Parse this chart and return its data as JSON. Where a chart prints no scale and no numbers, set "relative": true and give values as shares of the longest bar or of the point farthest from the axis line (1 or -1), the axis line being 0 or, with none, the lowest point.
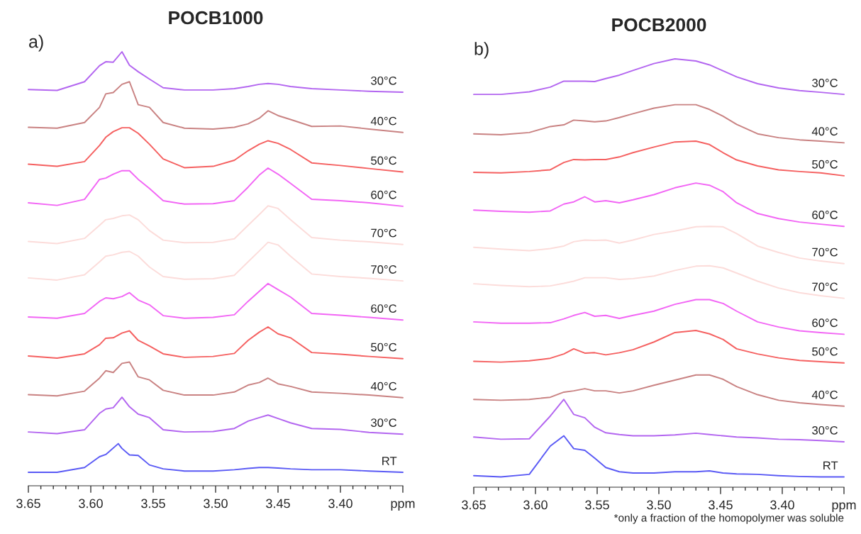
{
  "chart_data": [
    {
      "type": "line",
      "title": "POCB1000",
      "relative": true,
      "annotations": [
        "a)"
      ],
      "xlim": [
        3.65,
        3.35
      ],
      "xticks": [
        3.65,
        {
          "value": 3.6,
          "label": "3.60"
        },
        3.55,
        {
          "value": 3.5,
          "label": "3.50"
        },
        3.45,
        {
          "value": 3.4,
          "label": "3.40"
        },
        {
          "value": 3.35,
          "label": "ppm"
        },
        {
          "value": 3.64,
          "label": null
        },
        {
          "value": 3.63,
          "label": null
        },
        {
          "value": 3.62,
          "label": null
        },
        {
          "value": 3.61,
          "label": null
        },
        {
          "value": 3.59,
          "label": null
        },
        {
          "value": 3.58,
          "label": null
        },
        {
          "value": 3.57,
          "label": null
        },
        {
          "value": 3.56,
          "label": null
        },
        {
          "value": 3.54,
          "label": null
        },
        {
          "value": 3.53,
          "label": null
        },
        {
          "value": 3.52,
          "label": null
        },
        {
          "value": 3.51,
          "label": null
        },
        {
          "value": 3.49,
          "label": null
        },
        {
          "value": 3.48,
          "label": null
        },
        {
          "value": 3.47,
          "label": null
        },
        {
          "value": 3.46,
          "label": null
        },
        {
          "value": 3.44,
          "label": null
        },
        {
          "value": 3.43,
          "label": null
        },
        {
          "value": 3.42,
          "label": null
        },
        {
          "value": 3.41,
          "label": null
        },
        {
          "value": 3.39,
          "label": null
        },
        {
          "value": 3.38,
          "label": null
        },
        {
          "value": 3.37,
          "label": null
        },
        {
          "value": 3.36,
          "label": null
        }
      ],
      "x": [
        3.65,
        3.627,
        3.605,
        3.593,
        3.588,
        3.582,
        3.575,
        3.569,
        3.562,
        3.553,
        3.542,
        3.525,
        3.502,
        3.485,
        3.474,
        3.465,
        3.458,
        3.45,
        3.44,
        3.423,
        3.4,
        3.377,
        3.35
      ],
      "series": [
        {
          "name": "30°C",
          "color": "#b366f0",
          "values": [
            0.913,
            0.911,
            0.931,
            0.968,
            0.977,
            0.976,
            1.0,
            0.969,
            0.954,
            0.937,
            0.917,
            0.912,
            0.912,
            0.915,
            0.92,
            0.925,
            0.927,
            0.925,
            0.92,
            0.915,
            0.912,
            0.909,
            0.907
          ]
        },
        {
          "name": "40°C",
          "color": "#c98282",
          "values": [
            0.826,
            0.824,
            0.837,
            0.872,
            0.903,
            0.906,
            0.925,
            0.931,
            0.878,
            0.872,
            0.837,
            0.824,
            0.822,
            0.826,
            0.834,
            0.847,
            0.864,
            0.853,
            0.844,
            0.828,
            0.829,
            0.822,
            0.814
          ]
        },
        {
          "name": "50°C",
          "color": "#f56060",
          "values": [
            0.741,
            0.736,
            0.747,
            0.784,
            0.803,
            0.816,
            0.825,
            0.825,
            0.812,
            0.787,
            0.753,
            0.733,
            0.736,
            0.75,
            0.772,
            0.787,
            0.795,
            0.789,
            0.775,
            0.744,
            0.738,
            0.731,
            0.723
          ]
        },
        {
          "name": "60°C",
          "color": "#f266f5",
          "values": [
            0.652,
            0.646,
            0.66,
            0.706,
            0.709,
            0.718,
            0.726,
            0.726,
            0.706,
            0.685,
            0.657,
            0.649,
            0.65,
            0.657,
            0.688,
            0.716,
            0.732,
            0.718,
            0.697,
            0.66,
            0.657,
            0.652,
            0.644
          ]
        },
        {
          "name": "70°C",
          "color": "#fcdcda",
          "values": [
            0.563,
            0.558,
            0.57,
            0.6,
            0.613,
            0.616,
            0.622,
            0.624,
            0.613,
            0.588,
            0.566,
            0.56,
            0.561,
            0.569,
            0.6,
            0.625,
            0.645,
            0.639,
            0.613,
            0.572,
            0.566,
            0.562,
            0.556
          ]
        },
        {
          "name": "70°C",
          "color": "#fcdcda",
          "values": [
            0.479,
            0.474,
            0.486,
            0.516,
            0.529,
            0.532,
            0.538,
            0.54,
            0.529,
            0.504,
            0.482,
            0.476,
            0.477,
            0.485,
            0.516,
            0.541,
            0.561,
            0.555,
            0.529,
            0.488,
            0.482,
            0.478,
            0.472
          ]
        },
        {
          "name": "60°C",
          "color": "#f266f5",
          "values": [
            0.389,
            0.386,
            0.397,
            0.425,
            0.433,
            0.431,
            0.436,
            0.445,
            0.428,
            0.417,
            0.392,
            0.386,
            0.388,
            0.394,
            0.425,
            0.448,
            0.466,
            0.452,
            0.435,
            0.397,
            0.393,
            0.388,
            0.382
          ]
        },
        {
          "name": "50°C",
          "color": "#f56060",
          "values": [
            0.299,
            0.294,
            0.304,
            0.325,
            0.34,
            0.341,
            0.352,
            0.357,
            0.335,
            0.322,
            0.304,
            0.296,
            0.298,
            0.305,
            0.335,
            0.354,
            0.366,
            0.35,
            0.341,
            0.307,
            0.303,
            0.298,
            0.293
          ]
        },
        {
          "name": "40°C",
          "color": "#c98282",
          "values": [
            0.21,
            0.207,
            0.218,
            0.248,
            0.265,
            0.261,
            0.282,
            0.285,
            0.251,
            0.244,
            0.22,
            0.209,
            0.209,
            0.216,
            0.232,
            0.238,
            0.248,
            0.235,
            0.229,
            0.216,
            0.213,
            0.209,
            0.203
          ]
        },
        {
          "name": "30°C",
          "color": "#b366f0",
          "values": [
            0.124,
            0.12,
            0.129,
            0.167,
            0.177,
            0.18,
            0.204,
            0.182,
            0.165,
            0.157,
            0.129,
            0.124,
            0.125,
            0.132,
            0.149,
            0.157,
            0.163,
            0.155,
            0.145,
            0.132,
            0.13,
            0.123,
            0.119
          ]
        },
        {
          "name": "RT",
          "color": "#5a5af5",
          "x": [
            3.65,
            3.627,
            3.605,
            3.593,
            3.588,
            3.578,
            3.575,
            3.569,
            3.562,
            3.553,
            3.542,
            3.525,
            3.502,
            3.485,
            3.474,
            3.465,
            3.458,
            3.45,
            3.44,
            3.423,
            3.4,
            3.377,
            3.35
          ],
          "values": [
            0.031,
            0.031,
            0.042,
            0.067,
            0.072,
            0.097,
            0.086,
            0.071,
            0.07,
            0.048,
            0.039,
            0.034,
            0.034,
            0.037,
            0.04,
            0.042,
            0.042,
            0.041,
            0.039,
            0.037,
            0.037,
            0.034,
            0.031
          ]
        }
      ]
    },
    {
      "type": "line",
      "title": "POCB2000",
      "relative": true,
      "annotations": [
        "b)",
        "*only a fraction of the homopolymer was soluble"
      ],
      "xlim": [
        3.65,
        3.35
      ],
      "xticks": [
        3.65,
        {
          "value": 3.6,
          "label": "3.60"
        },
        3.55,
        {
          "value": 3.5,
          "label": "3.50"
        },
        3.45,
        {
          "value": 3.4,
          "label": "3.40"
        },
        {
          "value": 3.35,
          "label": "ppm"
        },
        {
          "value": 3.64,
          "label": null
        },
        {
          "value": 3.63,
          "label": null
        },
        {
          "value": 3.62,
          "label": null
        },
        {
          "value": 3.61,
          "label": null
        },
        {
          "value": 3.59,
          "label": null
        },
        {
          "value": 3.58,
          "label": null
        },
        {
          "value": 3.57,
          "label": null
        },
        {
          "value": 3.56,
          "label": null
        },
        {
          "value": 3.54,
          "label": null
        },
        {
          "value": 3.53,
          "label": null
        },
        {
          "value": 3.52,
          "label": null
        },
        {
          "value": 3.51,
          "label": null
        },
        {
          "value": 3.49,
          "label": null
        },
        {
          "value": 3.48,
          "label": null
        },
        {
          "value": 3.47,
          "label": null
        },
        {
          "value": 3.46,
          "label": null
        },
        {
          "value": 3.44,
          "label": null
        },
        {
          "value": 3.43,
          "label": null
        },
        {
          "value": 3.42,
          "label": null
        },
        {
          "value": 3.41,
          "label": null
        },
        {
          "value": 3.39,
          "label": null
        },
        {
          "value": 3.38,
          "label": null
        },
        {
          "value": 3.37,
          "label": null
        },
        {
          "value": 3.36,
          "label": null
        }
      ],
      "x": [
        3.65,
        3.628,
        3.605,
        3.588,
        3.577,
        3.569,
        3.56,
        3.552,
        3.543,
        3.532,
        3.521,
        3.504,
        3.487,
        3.47,
        3.459,
        3.448,
        3.437,
        3.42,
        3.403,
        3.386,
        3.369,
        3.35
      ],
      "series": [
        {
          "name": "30°C",
          "color": "#b366f0",
          "values": [
            0.917,
            0.917,
            0.923,
            0.934,
            0.948,
            0.948,
            0.948,
            0.947,
            0.954,
            0.962,
            0.973,
            0.989,
            1.0,
            0.995,
            0.986,
            0.972,
            0.958,
            0.942,
            0.932,
            0.926,
            0.922,
            0.917
          ]
        },
        {
          "name": "40°C",
          "color": "#c98282",
          "values": [
            0.825,
            0.823,
            0.828,
            0.842,
            0.846,
            0.857,
            0.855,
            0.853,
            0.855,
            0.863,
            0.872,
            0.885,
            0.893,
            0.893,
            0.882,
            0.866,
            0.847,
            0.825,
            0.816,
            0.811,
            0.808,
            0.804
          ]
        },
        {
          "name": "50°C",
          "color": "#f56060",
          "values": [
            0.735,
            0.734,
            0.737,
            0.741,
            0.758,
            0.765,
            0.764,
            0.765,
            0.765,
            0.771,
            0.781,
            0.794,
            0.806,
            0.808,
            0.8,
            0.781,
            0.764,
            0.75,
            0.741,
            0.737,
            0.734,
            0.727
          ]
        },
        {
          "name": "60°C",
          "color": "#f266f5",
          "values": [
            0.647,
            0.644,
            0.642,
            0.645,
            0.661,
            0.666,
            0.678,
            0.666,
            0.669,
            0.664,
            0.671,
            0.683,
            0.699,
            0.71,
            0.705,
            0.69,
            0.664,
            0.639,
            0.627,
            0.619,
            0.614,
            0.609
          ]
        },
        {
          "name": "70°C",
          "color": "#fcdcda",
          "values": [
            0.56,
            0.556,
            0.552,
            0.557,
            0.563,
            0.573,
            0.577,
            0.576,
            0.577,
            0.57,
            0.577,
            0.59,
            0.598,
            0.608,
            0.609,
            0.608,
            0.592,
            0.563,
            0.548,
            0.535,
            0.528,
            0.522
          ]
        },
        {
          "name": "70°C",
          "color": "#fcdcda",
          "values": [
            0.475,
            0.471,
            0.468,
            0.47,
            0.476,
            0.481,
            0.489,
            0.489,
            0.489,
            0.485,
            0.487,
            0.493,
            0.506,
            0.516,
            0.517,
            0.512,
            0.5,
            0.481,
            0.465,
            0.454,
            0.447,
            0.441
          ]
        },
        {
          "name": "60°C",
          "color": "#f266f5",
          "values": [
            0.386,
            0.383,
            0.383,
            0.384,
            0.393,
            0.401,
            0.408,
            0.399,
            0.401,
            0.394,
            0.401,
            0.411,
            0.427,
            0.438,
            0.438,
            0.429,
            0.411,
            0.386,
            0.374,
            0.365,
            0.361,
            0.357
          ]
        },
        {
          "name": "50°C",
          "color": "#f56060",
          "values": [
            0.294,
            0.292,
            0.295,
            0.301,
            0.311,
            0.323,
            0.313,
            0.314,
            0.309,
            0.314,
            0.321,
            0.339,
            0.361,
            0.366,
            0.358,
            0.345,
            0.323,
            0.311,
            0.302,
            0.296,
            0.293,
            0.29
          ]
        },
        {
          "name": "40°C",
          "color": "#c98282",
          "values": [
            0.205,
            0.203,
            0.205,
            0.21,
            0.222,
            0.225,
            0.23,
            0.225,
            0.225,
            0.22,
            0.225,
            0.238,
            0.25,
            0.262,
            0.262,
            0.252,
            0.235,
            0.216,
            0.203,
            0.197,
            0.193,
            0.189
          ]
        },
        {
          "name": "30°C",
          "color": "#b366f0",
          "values": [
            0.117,
            0.112,
            0.113,
            0.166,
            0.205,
            0.17,
            0.162,
            0.14,
            0.127,
            0.123,
            0.12,
            0.12,
            0.122,
            0.126,
            0.123,
            0.12,
            0.117,
            0.115,
            0.112,
            0.111,
            0.109,
            0.106
          ]
        },
        {
          "name": "RT",
          "color": "#5a5af5",
          "values": [
            0.027,
            0.024,
            0.03,
            0.096,
            0.12,
            0.09,
            0.086,
            0.068,
            0.046,
            0.036,
            0.033,
            0.033,
            0.036,
            0.036,
            0.038,
            0.033,
            0.031,
            0.03,
            0.027,
            0.025,
            0.024,
            0.024
          ]
        }
      ]
    }
  ]
}
